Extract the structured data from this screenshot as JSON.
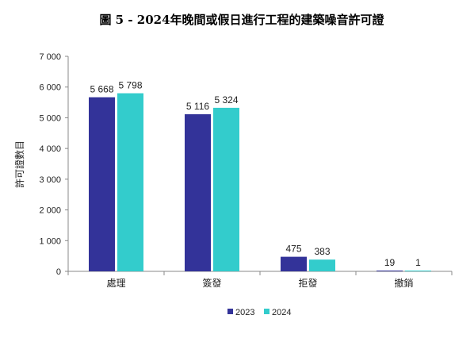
{
  "chart_data": {
    "type": "bar",
    "title": "圖 5 - 2024年晚間或假日進行工程的建築噪音許可證",
    "xlabel": "",
    "ylabel": "許可證數目",
    "categories": [
      "處理",
      "簽發",
      "拒發",
      "撤銷"
    ],
    "series": [
      {
        "name": "2023",
        "values": [
          5668,
          5116,
          475,
          19
        ],
        "labels": [
          "5 668",
          "5 116",
          "475",
          "19"
        ],
        "color": "#333399"
      },
      {
        "name": "2024",
        "values": [
          5798,
          5324,
          383,
          1
        ],
        "labels": [
          "5 798",
          "5 324",
          "383",
          "1"
        ],
        "color": "#33CCCC"
      }
    ],
    "ylim": [
      0,
      7000
    ],
    "yticks": [
      0,
      1000,
      2000,
      3000,
      4000,
      5000,
      6000,
      7000
    ],
    "ytick_labels": [
      "0",
      "1 000",
      "2 000",
      "3 000",
      "4 000",
      "5 000",
      "6 000",
      "7 000"
    ],
    "grid": false,
    "legend_position": "bottom"
  }
}
